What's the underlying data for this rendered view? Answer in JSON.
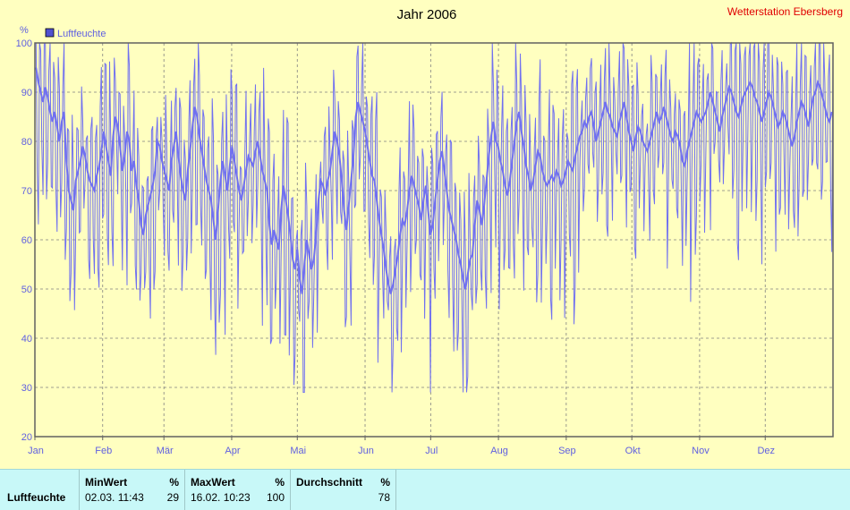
{
  "header": {
    "title": "Jahr 2006",
    "station": "Wetterstation Ebersberg"
  },
  "chart_data": {
    "type": "line",
    "title": "Jahr 2006",
    "ylabel": "%",
    "ylim": [
      20,
      100
    ],
    "yticks": [
      20,
      30,
      40,
      50,
      60,
      70,
      80,
      90,
      100
    ],
    "xticks": [
      "Jan",
      "Feb",
      "Mär",
      "Apr",
      "Mai",
      "Jun",
      "Jul",
      "Aug",
      "Sep",
      "Okt",
      "Nov",
      "Dez"
    ],
    "grid": true,
    "legend_placement": "top-left",
    "series": [
      {
        "name": "Luftfeuchte",
        "color": "#7070F0",
        "daily_mean": [
          95,
          92,
          90,
          88,
          91,
          89,
          86,
          84,
          86,
          83,
          80,
          84,
          86,
          76,
          70,
          68,
          66,
          72,
          74,
          76,
          79,
          77,
          74,
          72,
          71,
          70,
          73,
          75,
          78,
          82,
          79,
          76,
          73,
          81,
          85,
          83,
          79,
          74,
          77,
          82,
          80,
          74,
          76,
          71,
          68,
          63,
          61,
          65,
          67,
          69,
          71,
          74,
          80,
          79,
          76,
          74,
          72,
          70,
          76,
          79,
          82,
          77,
          73,
          70,
          68,
          74,
          78,
          83,
          87,
          85,
          81,
          78,
          75,
          72,
          70,
          68,
          64,
          60,
          66,
          72,
          76,
          73,
          70,
          75,
          79,
          76,
          73,
          70,
          68,
          71,
          74,
          77,
          76,
          75,
          78,
          80,
          77,
          74,
          72,
          70,
          63,
          59,
          62,
          60,
          58,
          66,
          71,
          68,
          65,
          61,
          56,
          54,
          58,
          52,
          49,
          55,
          60,
          57,
          54,
          56,
          61,
          68,
          72,
          71,
          69,
          72,
          74,
          78,
          82,
          80,
          77,
          72,
          66,
          62,
          67,
          72,
          77,
          85,
          88,
          86,
          84,
          82,
          79,
          76,
          73,
          72,
          68,
          64,
          61,
          58,
          54,
          51,
          49,
          51,
          54,
          57,
          61,
          64,
          63,
          66,
          70,
          73,
          71,
          69,
          67,
          64,
          68,
          71,
          66,
          61,
          63,
          68,
          72,
          76,
          78,
          74,
          70,
          66,
          64,
          62,
          60,
          57,
          55,
          52,
          50,
          53,
          56,
          57,
          63,
          68,
          66,
          63,
          67,
          72,
          77,
          81,
          84,
          80,
          79,
          76,
          74,
          71,
          69,
          72,
          76,
          80,
          84,
          86,
          82,
          79,
          75,
          73,
          70,
          72,
          75,
          78,
          77,
          74,
          72,
          71,
          72,
          73,
          72,
          74,
          73,
          71,
          72,
          74,
          76,
          75,
          74,
          77,
          79,
          81,
          82,
          84,
          83,
          85,
          86,
          83,
          80,
          82,
          84,
          86,
          88,
          86,
          85,
          83,
          82,
          81,
          84,
          86,
          88,
          85,
          82,
          80,
          78,
          81,
          83,
          82,
          80,
          79,
          78,
          80,
          82,
          84,
          86,
          84,
          85,
          87,
          85,
          83,
          81,
          80,
          82,
          81,
          79,
          76,
          75,
          78,
          80,
          82,
          84,
          86,
          85,
          84,
          85,
          86,
          88,
          90,
          88,
          86,
          84,
          82,
          85,
          87,
          89,
          91,
          90,
          88,
          86,
          85,
          87,
          89,
          90,
          91,
          92,
          91,
          89,
          88,
          86,
          84,
          86,
          88,
          90,
          89,
          87,
          85,
          83,
          84,
          86,
          85,
          83,
          81,
          79,
          81,
          84,
          86,
          88,
          87,
          85,
          83,
          86,
          89,
          90,
          92,
          91,
          89,
          87,
          85,
          84,
          86
        ]
      }
    ]
  },
  "stats_table": {
    "headers": [
      "MinWert",
      "%",
      "MaxWert",
      "%",
      "Durchschnitt",
      "%"
    ],
    "row_label": "Luftfeuchte",
    "min_time": "02.03.  11:43",
    "min_value": "29",
    "max_time": "16.02.  10:23",
    "max_value": "100",
    "avg_value": "78"
  }
}
